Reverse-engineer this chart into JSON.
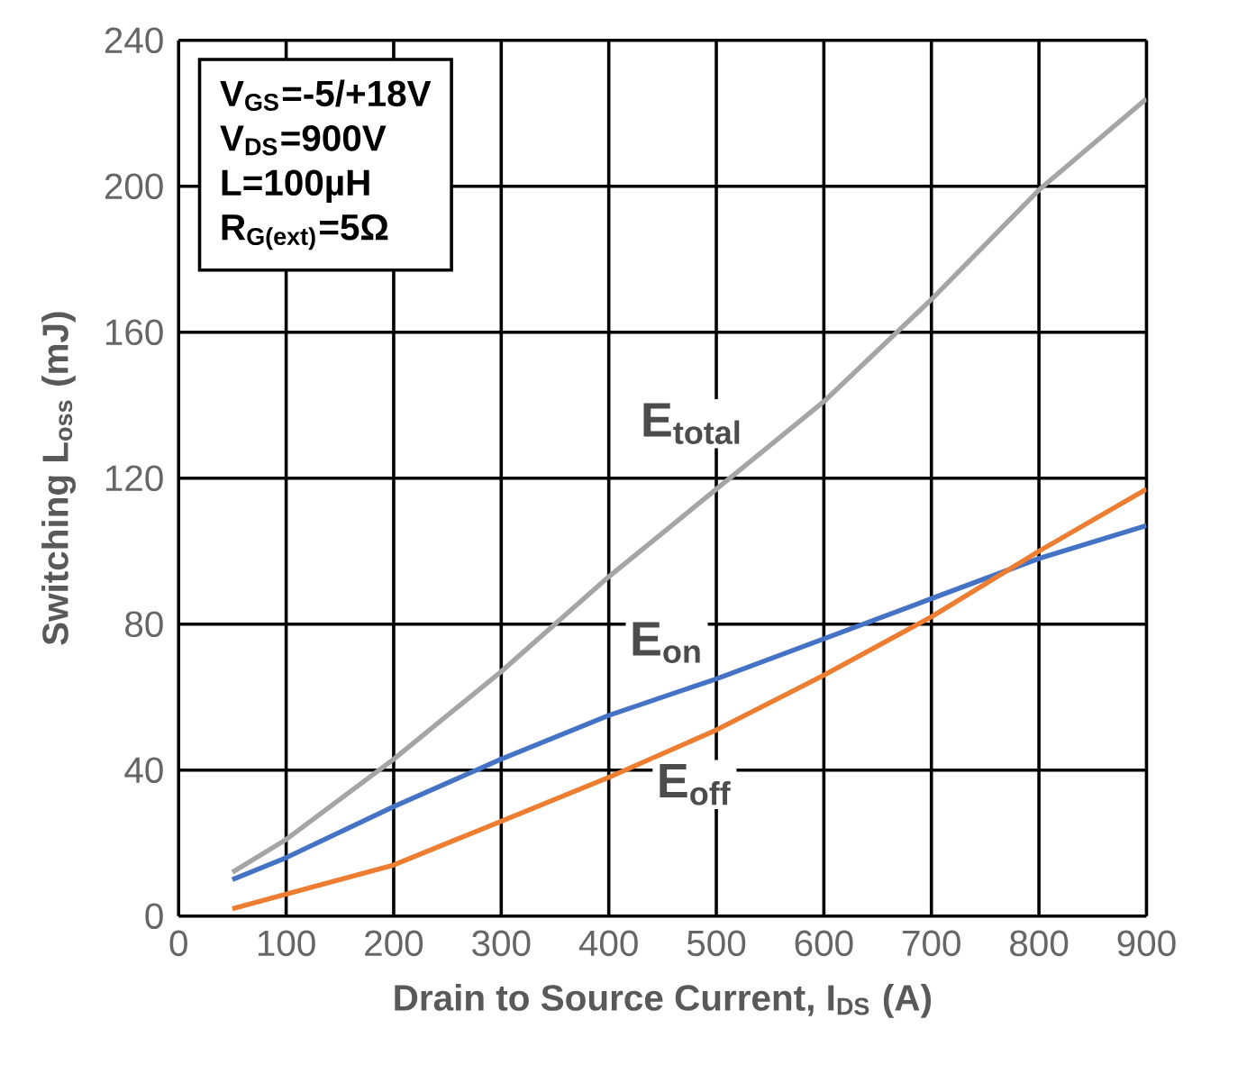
{
  "chart_data": {
    "type": "line",
    "xlabel": "Drain to Source Current, I$_{DS}$ (A)",
    "ylabel": "Switching L$_{oss}$ (mJ)",
    "xlim": [
      0,
      900
    ],
    "xticks": [
      0,
      100,
      200,
      300,
      400,
      500,
      600,
      700,
      800,
      900
    ],
    "ylim": [
      0,
      240
    ],
    "yticks": [
      0,
      40,
      80,
      120,
      160,
      200,
      240
    ],
    "grid": true,
    "annotations": [
      "V$_{GS}$=-5/+18V",
      "V$_{DS}$=900V",
      "L=100µH",
      "R$_{G(ext)}$=5Ω"
    ],
    "series": [
      {
        "name": "E$_{total}$",
        "color": "#a5a5a5",
        "x": [
          50,
          100,
          200,
          300,
          400,
          500,
          600,
          700,
          800,
          900
        ],
        "values": [
          12,
          21,
          43,
          67,
          93,
          117,
          141,
          169,
          199,
          224
        ]
      },
      {
        "name": "E$_{on}$",
        "color": "#4472c4",
        "x": [
          50,
          100,
          200,
          300,
          400,
          500,
          600,
          700,
          800,
          900
        ],
        "values": [
          10,
          16,
          30,
          43,
          55,
          65,
          76,
          87,
          98,
          107
        ]
      },
      {
        "name": "E$_{off}$",
        "color": "#ed7d31",
        "x": [
          50,
          100,
          200,
          300,
          400,
          500,
          600,
          700,
          800,
          900
        ],
        "values": [
          2,
          6,
          14,
          26,
          38,
          51,
          66,
          82,
          100,
          117
        ]
      }
    ]
  }
}
